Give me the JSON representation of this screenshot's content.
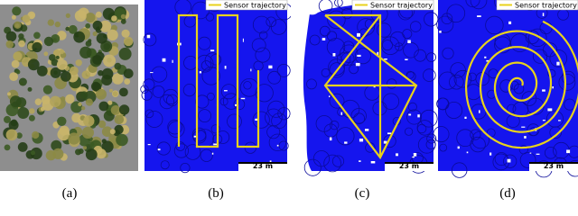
{
  "panels": [
    {
      "caption": "(a)"
    },
    {
      "caption": "(b)",
      "legend": "Sensor trajectory",
      "scale": "23 m"
    },
    {
      "caption": "(c)",
      "legend": "Sensor trajectory",
      "scale": "23 m"
    },
    {
      "caption": "(d)",
      "legend": "Sensor trajectory",
      "scale": "23 m"
    }
  ]
}
